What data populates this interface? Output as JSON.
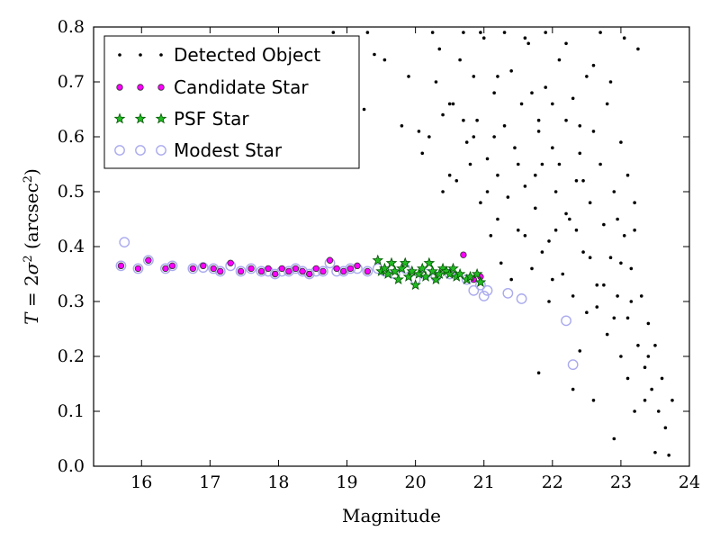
{
  "chart_data": {
    "type": "scatter",
    "xlabel": "Magnitude",
    "ylabel": "T = 2σ² (arcsec²)",
    "ylabel_parts": {
      "lhs": "T",
      "eq": " = 2",
      "sigma": "σ",
      "sup2": "2",
      "lunit": " (arcsec",
      "sup": "2",
      "rparen": ")"
    },
    "xlim": [
      15.3,
      24.0
    ],
    "ylim": [
      0.0,
      0.8
    ],
    "xticks": [
      16,
      17,
      18,
      19,
      20,
      21,
      22,
      23,
      24
    ],
    "yticks": [
      0.0,
      0.1,
      0.2,
      0.3,
      0.4,
      0.5,
      0.6,
      0.7,
      0.8
    ],
    "xtick_labels": [
      "16",
      "17",
      "18",
      "19",
      "20",
      "21",
      "22",
      "23",
      "24"
    ],
    "ytick_labels": [
      "0.0",
      "0.1",
      "0.2",
      "0.3",
      "0.4",
      "0.5",
      "0.6",
      "0.7",
      "0.8"
    ],
    "grid": false,
    "legend_position": "top-left",
    "series": [
      {
        "name": "Detected Object",
        "marker": "dot",
        "color": "#000000",
        "points": [
          [
            18.8,
            0.79
          ],
          [
            18.95,
            0.76
          ],
          [
            19.1,
            0.74
          ],
          [
            19.3,
            0.79
          ],
          [
            19.25,
            0.65
          ],
          [
            19.4,
            0.75
          ],
          [
            19.55,
            0.74
          ],
          [
            19.8,
            0.62
          ],
          [
            19.9,
            0.71
          ],
          [
            20.05,
            0.61
          ],
          [
            20.2,
            0.6
          ],
          [
            20.25,
            0.79
          ],
          [
            20.3,
            0.7
          ],
          [
            20.35,
            0.76
          ],
          [
            20.4,
            0.64
          ],
          [
            20.5,
            0.66
          ],
          [
            20.55,
            0.66
          ],
          [
            20.6,
            0.52
          ],
          [
            20.65,
            0.74
          ],
          [
            20.7,
            0.79
          ],
          [
            20.75,
            0.59
          ],
          [
            20.8,
            0.55
          ],
          [
            20.85,
            0.71
          ],
          [
            20.9,
            0.63
          ],
          [
            20.95,
            0.48
          ],
          [
            21.0,
            0.78
          ],
          [
            21.05,
            0.56
          ],
          [
            21.1,
            0.42
          ],
          [
            21.15,
            0.68
          ],
          [
            21.2,
            0.53
          ],
          [
            21.25,
            0.37
          ],
          [
            21.3,
            0.62
          ],
          [
            21.35,
            0.49
          ],
          [
            21.4,
            0.72
          ],
          [
            21.45,
            0.58
          ],
          [
            21.5,
            0.43
          ],
          [
            21.55,
            0.66
          ],
          [
            21.6,
            0.51
          ],
          [
            21.65,
            0.77
          ],
          [
            21.7,
            0.36
          ],
          [
            21.75,
            0.47
          ],
          [
            21.8,
            0.61
          ],
          [
            21.85,
            0.55
          ],
          [
            21.9,
            0.69
          ],
          [
            21.95,
            0.41
          ],
          [
            22.0,
            0.58
          ],
          [
            22.05,
            0.5
          ],
          [
            22.1,
            0.74
          ],
          [
            22.15,
            0.35
          ],
          [
            22.2,
            0.63
          ],
          [
            22.25,
            0.45
          ],
          [
            22.3,
            0.67
          ],
          [
            22.35,
            0.52
          ],
          [
            22.4,
            0.57
          ],
          [
            22.45,
            0.39
          ],
          [
            22.5,
            0.71
          ],
          [
            22.55,
            0.48
          ],
          [
            22.6,
            0.61
          ],
          [
            22.65,
            0.33
          ],
          [
            22.7,
            0.55
          ],
          [
            22.75,
            0.44
          ],
          [
            22.8,
            0.66
          ],
          [
            22.85,
            0.38
          ],
          [
            22.9,
            0.5
          ],
          [
            22.95,
            0.31
          ],
          [
            23.0,
            0.59
          ],
          [
            23.05,
            0.42
          ],
          [
            23.1,
            0.27
          ],
          [
            23.15,
            0.36
          ],
          [
            23.2,
            0.48
          ],
          [
            23.25,
            0.22
          ],
          [
            23.3,
            0.31
          ],
          [
            23.35,
            0.18
          ],
          [
            23.4,
            0.26
          ],
          [
            23.45,
            0.14
          ],
          [
            23.5,
            0.22
          ],
          [
            23.55,
            0.1
          ],
          [
            23.6,
            0.16
          ],
          [
            23.65,
            0.07
          ],
          [
            23.75,
            0.12
          ],
          [
            23.7,
            0.02
          ],
          [
            23.5,
            0.025
          ],
          [
            22.9,
            0.05
          ],
          [
            21.8,
            0.17
          ],
          [
            22.3,
            0.14
          ],
          [
            22.6,
            0.12
          ],
          [
            23.2,
            0.1
          ],
          [
            23.0,
            0.2
          ],
          [
            22.8,
            0.24
          ],
          [
            22.5,
            0.28
          ],
          [
            22.4,
            0.21
          ],
          [
            23.1,
            0.16
          ],
          [
            21.6,
            0.78
          ],
          [
            21.9,
            0.79
          ],
          [
            22.7,
            0.79
          ],
          [
            22.2,
            0.77
          ],
          [
            21.3,
            0.79
          ],
          [
            20.95,
            0.79
          ],
          [
            21.2,
            0.71
          ],
          [
            21.7,
            0.68
          ],
          [
            21.8,
            0.63
          ],
          [
            22.0,
            0.66
          ],
          [
            22.4,
            0.62
          ],
          [
            22.6,
            0.73
          ],
          [
            22.85,
            0.7
          ],
          [
            23.05,
            0.78
          ],
          [
            23.25,
            0.76
          ],
          [
            23.1,
            0.53
          ],
          [
            22.95,
            0.45
          ],
          [
            23.0,
            0.37
          ],
          [
            22.75,
            0.33
          ],
          [
            22.2,
            0.46
          ],
          [
            21.95,
            0.3
          ],
          [
            21.6,
            0.42
          ],
          [
            21.4,
            0.34
          ],
          [
            21.2,
            0.45
          ],
          [
            21.05,
            0.5
          ],
          [
            20.85,
            0.6
          ],
          [
            20.7,
            0.63
          ],
          [
            20.5,
            0.53
          ],
          [
            20.4,
            0.5
          ],
          [
            20.1,
            0.57
          ],
          [
            21.15,
            0.6
          ],
          [
            21.5,
            0.55
          ],
          [
            22.1,
            0.55
          ],
          [
            22.35,
            0.43
          ],
          [
            22.55,
            0.38
          ],
          [
            22.9,
            0.27
          ],
          [
            23.2,
            0.43
          ],
          [
            23.4,
            0.2
          ],
          [
            21.85,
            0.39
          ],
          [
            22.0,
            0.34
          ],
          [
            22.3,
            0.31
          ],
          [
            22.65,
            0.29
          ],
          [
            23.15,
            0.3
          ],
          [
            23.35,
            0.12
          ],
          [
            22.45,
            0.52
          ],
          [
            21.75,
            0.53
          ],
          [
            22.05,
            0.43
          ]
        ]
      },
      {
        "name": "Candidate Star",
        "marker": "circle",
        "color": "#ff00ff",
        "stroke": "#333333",
        "points": [
          [
            15.7,
            0.365
          ],
          [
            15.95,
            0.36
          ],
          [
            16.1,
            0.375
          ],
          [
            16.35,
            0.36
          ],
          [
            16.45,
            0.365
          ],
          [
            16.75,
            0.36
          ],
          [
            16.9,
            0.365
          ],
          [
            17.05,
            0.36
          ],
          [
            17.15,
            0.355
          ],
          [
            17.3,
            0.37
          ],
          [
            17.45,
            0.355
          ],
          [
            17.6,
            0.36
          ],
          [
            17.75,
            0.355
          ],
          [
            17.85,
            0.36
          ],
          [
            17.95,
            0.35
          ],
          [
            18.05,
            0.36
          ],
          [
            18.15,
            0.355
          ],
          [
            18.25,
            0.36
          ],
          [
            18.35,
            0.355
          ],
          [
            18.45,
            0.35
          ],
          [
            18.55,
            0.36
          ],
          [
            18.65,
            0.355
          ],
          [
            18.75,
            0.375
          ],
          [
            18.85,
            0.36
          ],
          [
            18.95,
            0.355
          ],
          [
            19.05,
            0.36
          ],
          [
            19.15,
            0.365
          ],
          [
            19.3,
            0.355
          ],
          [
            20.7,
            0.385
          ],
          [
            20.85,
            0.34
          ],
          [
            20.95,
            0.345
          ]
        ]
      },
      {
        "name": "PSF Star",
        "marker": "star",
        "color": "#22bb22",
        "stroke": "#005500",
        "points": [
          [
            19.45,
            0.375
          ],
          [
            19.5,
            0.355
          ],
          [
            19.55,
            0.36
          ],
          [
            19.6,
            0.35
          ],
          [
            19.65,
            0.37
          ],
          [
            19.7,
            0.355
          ],
          [
            19.75,
            0.34
          ],
          [
            19.8,
            0.36
          ],
          [
            19.85,
            0.37
          ],
          [
            19.9,
            0.345
          ],
          [
            19.95,
            0.355
          ],
          [
            20.0,
            0.33
          ],
          [
            20.05,
            0.35
          ],
          [
            20.1,
            0.36
          ],
          [
            20.15,
            0.345
          ],
          [
            20.2,
            0.37
          ],
          [
            20.25,
            0.355
          ],
          [
            20.3,
            0.34
          ],
          [
            20.35,
            0.35
          ],
          [
            20.4,
            0.36
          ],
          [
            20.45,
            0.355
          ],
          [
            20.5,
            0.35
          ],
          [
            20.55,
            0.36
          ],
          [
            20.6,
            0.345
          ],
          [
            20.65,
            0.35
          ],
          [
            20.75,
            0.34
          ],
          [
            20.8,
            0.345
          ],
          [
            20.9,
            0.35
          ],
          [
            20.95,
            0.335
          ]
        ]
      },
      {
        "name": "Modest Star",
        "marker": "open-circle",
        "color": "#aaaaee",
        "points": [
          [
            15.75,
            0.408
          ],
          [
            15.7,
            0.365
          ],
          [
            15.95,
            0.36
          ],
          [
            16.1,
            0.375
          ],
          [
            16.35,
            0.36
          ],
          [
            16.45,
            0.365
          ],
          [
            16.75,
            0.36
          ],
          [
            16.9,
            0.362
          ],
          [
            17.05,
            0.36
          ],
          [
            17.15,
            0.355
          ],
          [
            17.3,
            0.365
          ],
          [
            17.45,
            0.355
          ],
          [
            17.6,
            0.36
          ],
          [
            17.75,
            0.355
          ],
          [
            17.85,
            0.355
          ],
          [
            17.95,
            0.35
          ],
          [
            18.05,
            0.355
          ],
          [
            18.15,
            0.355
          ],
          [
            18.25,
            0.36
          ],
          [
            18.35,
            0.355
          ],
          [
            18.45,
            0.35
          ],
          [
            18.55,
            0.355
          ],
          [
            18.65,
            0.355
          ],
          [
            18.75,
            0.37
          ],
          [
            18.85,
            0.355
          ],
          [
            18.95,
            0.355
          ],
          [
            19.05,
            0.36
          ],
          [
            19.15,
            0.36
          ],
          [
            19.3,
            0.355
          ],
          [
            19.45,
            0.36
          ],
          [
            19.55,
            0.355
          ],
          [
            19.7,
            0.35
          ],
          [
            19.85,
            0.36
          ],
          [
            20.0,
            0.34
          ],
          [
            20.15,
            0.35
          ],
          [
            20.3,
            0.345
          ],
          [
            20.5,
            0.35
          ],
          [
            20.75,
            0.34
          ],
          [
            20.85,
            0.32
          ],
          [
            20.95,
            0.33
          ],
          [
            21.0,
            0.31
          ],
          [
            21.05,
            0.32
          ],
          [
            21.35,
            0.315
          ],
          [
            21.55,
            0.305
          ],
          [
            22.2,
            0.265
          ],
          [
            22.3,
            0.185
          ]
        ]
      }
    ]
  }
}
